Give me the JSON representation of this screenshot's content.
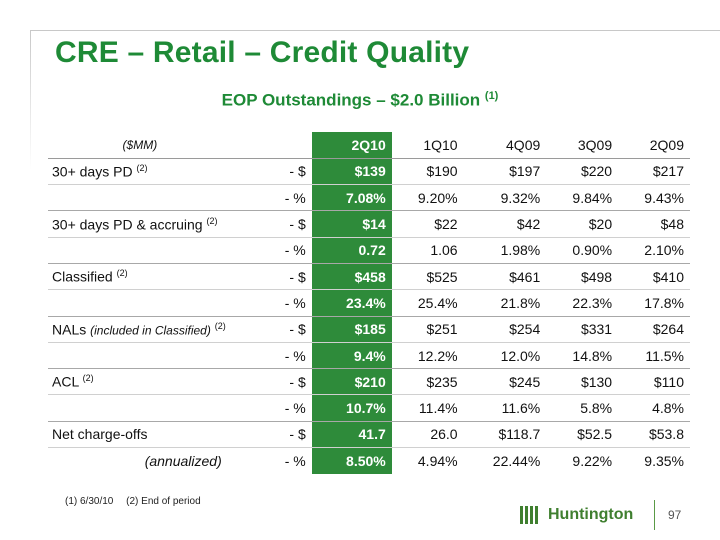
{
  "title": "CRE – Retail – Credit Quality",
  "subtitle": {
    "text": "EOP Outstandings – $2.0 Billion",
    "note": "(1)"
  },
  "table": {
    "units_label": "($MM)",
    "columns": [
      "2Q10",
      "1Q10",
      "4Q09",
      "3Q09",
      "2Q09"
    ],
    "rows": [
      {
        "label": "30+ days PD",
        "label_em": "",
        "note": "(2)",
        "unit": "- $",
        "values": [
          "$139",
          "$190",
          "$197",
          "$220",
          "$217"
        ]
      },
      {
        "label": "",
        "label_em": "",
        "note": "",
        "unit": "- %",
        "values": [
          "7.08%",
          "9.20%",
          "9.32%",
          "9.84%",
          "9.43%"
        ]
      },
      {
        "label": "30+ days PD & accruing",
        "label_em": "",
        "note": "(2)",
        "unit": "- $",
        "values": [
          "$14",
          "$22",
          "$42",
          "$20",
          "$48"
        ]
      },
      {
        "label": "",
        "label_em": "",
        "note": "",
        "unit": "- %",
        "values": [
          "0.72",
          "1.06",
          "1.98%",
          "0.90%",
          "2.10%"
        ]
      },
      {
        "label": "Classified",
        "label_em": "",
        "note": "(2)",
        "unit": "- $",
        "values": [
          "$458",
          "$525",
          "$461",
          "$498",
          "$410"
        ]
      },
      {
        "label": "",
        "label_em": "",
        "note": "",
        "unit": "- %",
        "values": [
          "23.4%",
          "25.4%",
          "21.8%",
          "22.3%",
          "17.8%"
        ]
      },
      {
        "label": "NALs",
        "label_em": "(included in Classified)",
        "note": "(2)",
        "unit": "- $",
        "values": [
          "$185",
          "$251",
          "$254",
          "$331",
          "$264"
        ]
      },
      {
        "label": "",
        "label_em": "",
        "note": "",
        "unit": "- %",
        "values": [
          "9.4%",
          "12.2%",
          "12.0%",
          "14.8%",
          "11.5%"
        ]
      },
      {
        "label": "ACL",
        "label_em": "",
        "note": "(2)",
        "unit": "- $",
        "values": [
          "$210",
          "$235",
          "$245",
          "$130",
          "$110"
        ]
      },
      {
        "label": "",
        "label_em": "",
        "note": "",
        "unit": "- %",
        "values": [
          "10.7%",
          "11.4%",
          "11.6%",
          "5.8%",
          "4.8%"
        ]
      },
      {
        "label": "Net charge-offs",
        "label_em": "",
        "note": "",
        "unit": "- $",
        "values": [
          "41.7",
          "26.0",
          "$118.7",
          "$52.5",
          "$53.8"
        ]
      },
      {
        "label": "",
        "label_em": "(annualized)",
        "note": "",
        "unit": "- %",
        "values": [
          "8.50%",
          "4.94%",
          "22.44%",
          "9.22%",
          "9.35%"
        ]
      }
    ]
  },
  "footnotes": [
    "(1) 6/30/10",
    "(2) End of period"
  ],
  "logo": {
    "text": "Huntington",
    "icon": "huntington-logo-icon"
  },
  "page_number": "97",
  "colors": {
    "accent": "#1e8a36",
    "highlight_column": "#2e8b3a"
  }
}
